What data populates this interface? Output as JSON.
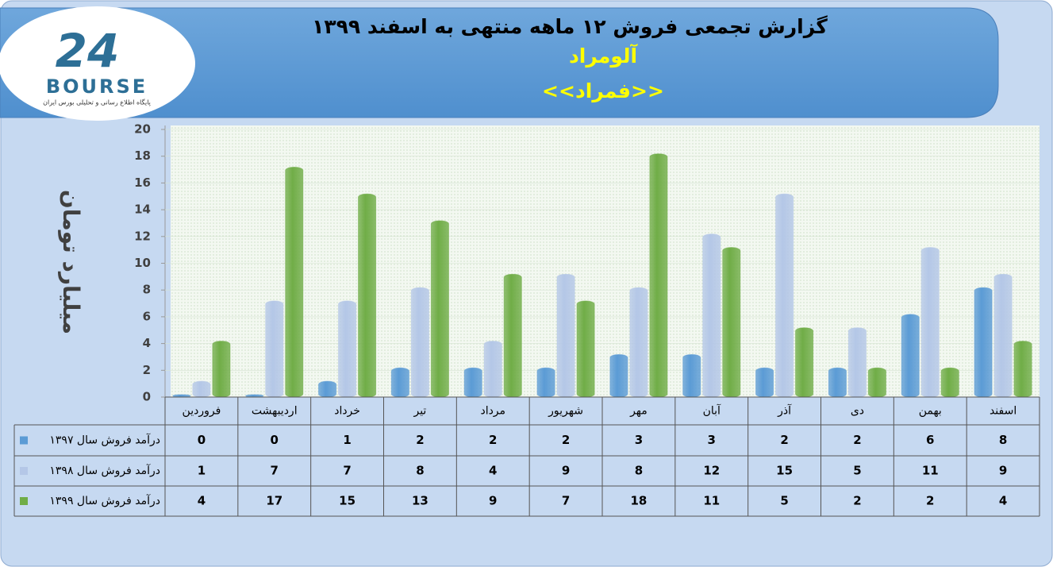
{
  "header": {
    "logo_mark": "24",
    "logo_text": "BOURSE",
    "logo_subtext": "پایگاه اطلاع رسانی و تحلیلی بورس ایران"
  },
  "chart_data": {
    "type": "bar",
    "title": "گزارش تجمعی فروش ۱۲ ماهه منتهی به اسفند ۱۳۹۹",
    "subtitle": "آلومراد",
    "symbol": "<<فمراد>>",
    "y_label": "میلیارد تومان",
    "categories": [
      "فروردین",
      "اردیبهشت",
      "خرداد",
      "تیر",
      "مرداد",
      "شهریور",
      "مهر",
      "آبان",
      "آذر",
      "دی",
      "بهمن",
      "اسفند"
    ],
    "series": [
      {
        "name": "درآمد فروش سال ۱۳۹۷",
        "color": "#5b9bd5",
        "values": [
          0,
          0,
          1,
          2,
          2,
          2,
          3,
          3,
          2,
          2,
          6,
          8
        ]
      },
      {
        "name": "درآمد فروش سال ۱۳۹۸",
        "color": "#b4c7e7",
        "values": [
          1,
          7,
          7,
          8,
          4,
          9,
          8,
          12,
          15,
          5,
          11,
          9
        ]
      },
      {
        "name": "درآمد فروش سال ۱۳۹۹",
        "color": "#70ad47",
        "values": [
          4,
          17,
          15,
          13,
          9,
          7,
          18,
          11,
          5,
          2,
          2,
          4
        ]
      }
    ],
    "ylim": [
      0,
      20
    ],
    "yticks": [
      0,
      2,
      4,
      6,
      8,
      10,
      12,
      14,
      16,
      18,
      20
    ],
    "grid": true,
    "data_table": true
  }
}
